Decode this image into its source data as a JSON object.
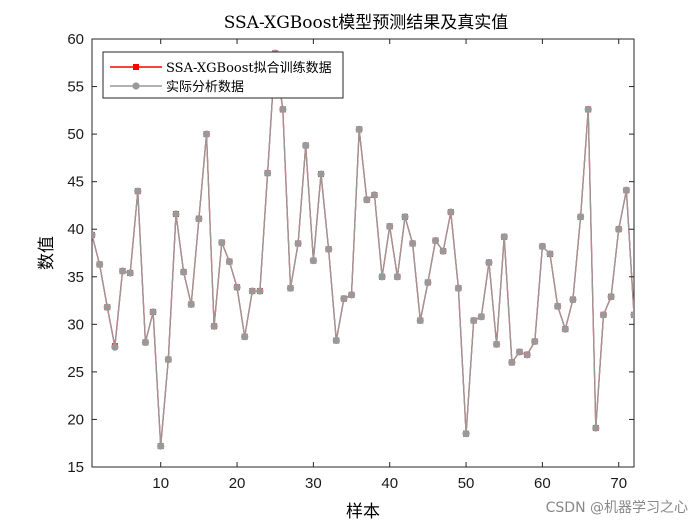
{
  "chart_data": {
    "type": "line",
    "title": "SSA-XGBoost模型预测结果及真实值",
    "xlabel": "样本",
    "ylabel": "数值",
    "xlim": [
      1,
      72
    ],
    "ylim": [
      15,
      60
    ],
    "xticks": [
      10,
      20,
      30,
      40,
      50,
      60,
      70
    ],
    "yticks": [
      15,
      20,
      25,
      30,
      35,
      40,
      45,
      50,
      55,
      60
    ],
    "legend_position": "top-left",
    "grid": false,
    "series": [
      {
        "name": "SSA-XGBoost拟合训练数据",
        "color": "#ff0000",
        "marker": "square",
        "x": [
          1,
          2,
          3,
          4,
          5,
          6,
          7,
          8,
          9,
          10,
          11,
          12,
          13,
          14,
          15,
          16,
          17,
          18,
          19,
          20,
          21,
          22,
          23,
          24,
          25,
          26,
          27,
          28,
          29,
          30,
          31,
          32,
          33,
          34,
          35,
          36,
          37,
          38,
          39,
          40,
          41,
          42,
          43,
          44,
          45,
          46,
          47,
          48,
          49,
          50,
          51,
          52,
          53,
          54,
          55,
          56,
          57,
          58,
          59,
          60,
          61,
          62,
          63,
          64,
          65,
          66,
          67,
          68,
          69,
          70,
          71,
          72
        ],
        "values": [
          39.4,
          36.3,
          31.8,
          27.7,
          35.6,
          35.4,
          44.0,
          28.1,
          31.3,
          17.2,
          26.3,
          41.6,
          35.5,
          32.1,
          41.1,
          50.0,
          29.8,
          38.6,
          36.6,
          33.9,
          28.7,
          33.5,
          33.5,
          45.9,
          58.5,
          52.6,
          33.8,
          38.5,
          48.8,
          36.7,
          45.8,
          37.9,
          28.3,
          32.7,
          33.1,
          50.5,
          43.1,
          43.6,
          35.0,
          40.3,
          35.0,
          41.3,
          38.5,
          30.4,
          34.4,
          38.8,
          37.7,
          41.8,
          33.8,
          18.5,
          30.4,
          30.8,
          36.5,
          27.9,
          39.2,
          26.0,
          27.1,
          26.8,
          28.2,
          38.2,
          37.4,
          31.9,
          29.5,
          32.6,
          41.3,
          52.6,
          19.1,
          31.0,
          32.9,
          40.0,
          44.1,
          31.0
        ]
      },
      {
        "name": "实际分析数据",
        "color": "#999999",
        "marker": "circle",
        "x": [
          1,
          2,
          3,
          4,
          5,
          6,
          7,
          8,
          9,
          10,
          11,
          12,
          13,
          14,
          15,
          16,
          17,
          18,
          19,
          20,
          21,
          22,
          23,
          24,
          25,
          26,
          27,
          28,
          29,
          30,
          31,
          32,
          33,
          34,
          35,
          36,
          37,
          38,
          39,
          40,
          41,
          42,
          43,
          44,
          45,
          46,
          47,
          48,
          49,
          50,
          51,
          52,
          53,
          54,
          55,
          56,
          57,
          58,
          59,
          60,
          61,
          62,
          63,
          64,
          65,
          66,
          67,
          68,
          69,
          70,
          71,
          72
        ],
        "values": [
          39.4,
          36.3,
          31.8,
          27.6,
          35.6,
          35.4,
          44.0,
          28.1,
          31.3,
          17.2,
          26.3,
          41.6,
          35.5,
          32.1,
          41.1,
          50.0,
          29.8,
          38.6,
          36.6,
          33.9,
          28.7,
          33.5,
          33.5,
          45.9,
          58.5,
          52.6,
          33.8,
          38.5,
          48.8,
          36.7,
          45.8,
          37.9,
          28.3,
          32.7,
          33.1,
          50.5,
          43.1,
          43.6,
          35.0,
          40.3,
          35.0,
          41.3,
          38.5,
          30.4,
          34.4,
          38.8,
          37.7,
          41.8,
          33.8,
          18.5,
          30.4,
          30.8,
          36.5,
          27.9,
          39.2,
          26.0,
          27.1,
          26.8,
          28.2,
          38.2,
          37.4,
          31.9,
          29.5,
          32.6,
          41.3,
          52.6,
          19.1,
          31.0,
          32.9,
          40.0,
          44.1,
          31.0
        ]
      }
    ]
  },
  "watermark": "CSDN @机器学习之心"
}
